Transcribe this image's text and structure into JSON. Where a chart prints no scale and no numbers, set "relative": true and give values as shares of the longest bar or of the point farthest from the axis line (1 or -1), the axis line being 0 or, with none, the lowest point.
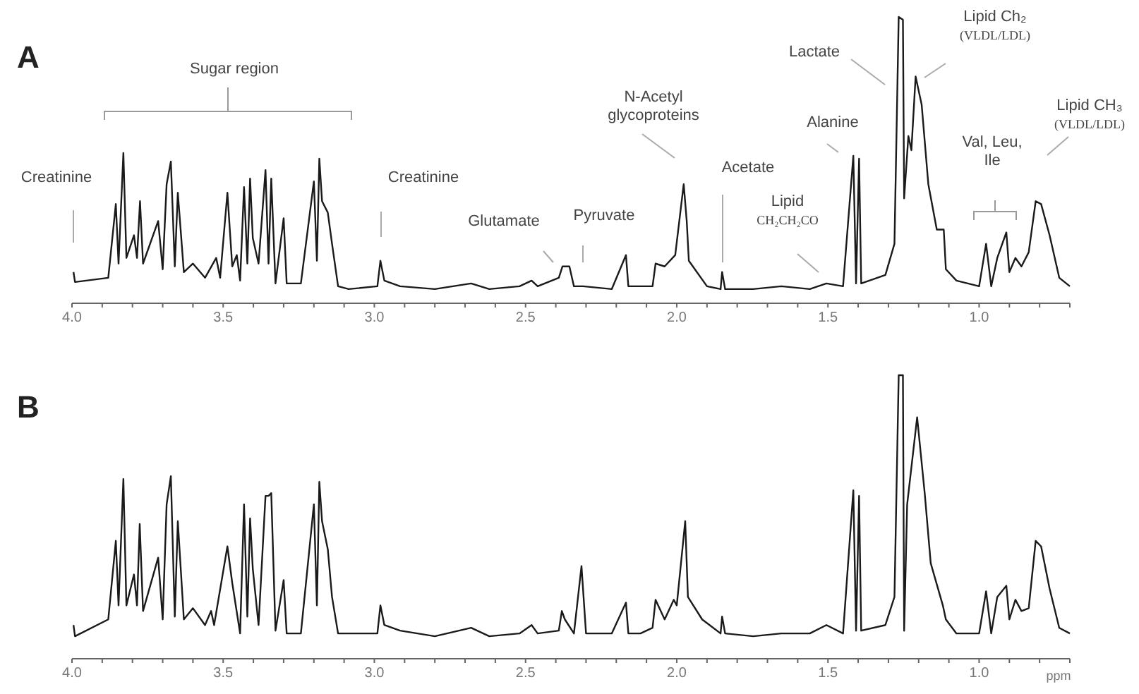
{
  "chart_data": [
    {
      "type": "line",
      "title": "A",
      "relative": true,
      "color": "#1a1a1a",
      "xlim": [
        4.0,
        0.7
      ],
      "xticks": [
        {
          "value": 4.0,
          "label": "4.0"
        },
        {
          "value": 3.9,
          "label": null
        },
        {
          "value": 3.8,
          "label": null
        },
        {
          "value": 3.7,
          "label": null
        },
        {
          "value": 3.6,
          "label": null
        },
        {
          "value": 3.5,
          "label": "3.5"
        },
        {
          "value": 3.4,
          "label": null
        },
        {
          "value": 3.3,
          "label": null
        },
        {
          "value": 3.2,
          "label": null
        },
        {
          "value": 3.1,
          "label": null
        },
        {
          "value": 3.0,
          "label": "3.0"
        },
        {
          "value": 2.9,
          "label": null
        },
        {
          "value": 2.8,
          "label": null
        },
        {
          "value": 2.7,
          "label": null
        },
        {
          "value": 2.6,
          "label": null
        },
        {
          "value": 2.5,
          "label": "2.5"
        },
        {
          "value": 2.4,
          "label": null
        },
        {
          "value": 2.3,
          "label": null
        },
        {
          "value": 2.2,
          "label": null
        },
        {
          "value": 2.1,
          "label": null
        },
        {
          "value": 2.0,
          "label": "2.0"
        },
        {
          "value": 1.9,
          "label": null
        },
        {
          "value": 1.8,
          "label": null
        },
        {
          "value": 1.7,
          "label": null
        },
        {
          "value": 1.6,
          "label": null
        },
        {
          "value": 1.5,
          "label": "1.5"
        },
        {
          "value": 1.4,
          "label": null
        },
        {
          "value": 1.3,
          "label": null
        },
        {
          "value": 1.2,
          "label": null
        },
        {
          "value": 1.1,
          "label": null
        },
        {
          "value": 1.0,
          "label": "1.0"
        },
        {
          "value": 0.9,
          "label": null
        },
        {
          "value": 0.8,
          "label": null
        },
        {
          "value": 0.7,
          "label": null
        }
      ],
      "x": [
        3.995,
        3.99,
        3.88,
        3.855,
        3.846,
        3.83,
        3.82,
        3.795,
        3.785,
        3.775,
        3.765,
        3.715,
        3.7,
        3.687,
        3.673,
        3.66,
        3.65,
        3.63,
        3.6,
        3.56,
        3.523,
        3.51,
        3.486,
        3.47,
        3.455,
        3.444,
        3.431,
        3.42,
        3.411,
        3.402,
        3.383,
        3.36,
        3.35,
        3.341,
        3.327,
        3.3,
        3.29,
        3.243,
        3.2,
        3.19,
        3.182,
        3.173,
        3.154,
        3.14,
        3.12,
        3.085,
        2.99,
        2.98,
        2.967,
        2.915,
        2.8,
        2.68,
        2.62,
        2.52,
        2.48,
        2.46,
        2.39,
        2.378,
        2.355,
        2.34,
        2.31,
        2.215,
        2.168,
        2.16,
        2.08,
        2.07,
        2.04,
        2.005,
        1.977,
        1.967,
        1.96,
        1.9,
        1.855,
        1.85,
        1.84,
        1.747,
        1.654,
        1.56,
        1.505,
        1.45,
        1.416,
        1.407,
        1.397,
        1.39,
        1.31,
        1.28,
        1.266,
        1.252,
        1.248,
        1.234,
        1.224,
        1.21,
        1.19,
        1.168,
        1.14,
        1.117,
        1.11,
        1.075,
        1.0,
        0.977,
        0.96,
        0.94,
        0.91,
        0.9,
        0.88,
        0.86,
        0.836,
        0.813,
        0.795,
        0.767,
        0.735,
        0.7
      ],
      "values": [
        0.1,
        0.065,
        0.08,
        0.34,
        0.13,
        0.52,
        0.15,
        0.23,
        0.15,
        0.35,
        0.13,
        0.28,
        0.11,
        0.41,
        0.49,
        0.12,
        0.38,
        0.1,
        0.13,
        0.08,
        0.15,
        0.08,
        0.38,
        0.12,
        0.16,
        0.07,
        0.4,
        0.13,
        0.43,
        0.22,
        0.13,
        0.46,
        0.13,
        0.43,
        0.06,
        0.29,
        0.06,
        0.06,
        0.42,
        0.14,
        0.5,
        0.35,
        0.31,
        0.2,
        0.05,
        0.04,
        0.05,
        0.14,
        0.07,
        0.05,
        0.04,
        0.06,
        0.04,
        0.05,
        0.07,
        0.05,
        0.08,
        0.12,
        0.12,
        0.05,
        0.05,
        0.04,
        0.16,
        0.05,
        0.05,
        0.13,
        0.12,
        0.16,
        0.41,
        0.28,
        0.14,
        0.05,
        0.04,
        0.1,
        0.04,
        0.04,
        0.05,
        0.04,
        0.06,
        0.05,
        0.51,
        0.06,
        0.5,
        0.06,
        0.09,
        0.2,
        1.0,
        0.99,
        0.36,
        0.58,
        0.53,
        0.79,
        0.69,
        0.41,
        0.25,
        0.25,
        0.11,
        0.07,
        0.05,
        0.2,
        0.05,
        0.15,
        0.24,
        0.1,
        0.15,
        0.12,
        0.17,
        0.35,
        0.34,
        0.23,
        0.08,
        0.05
      ],
      "annotations": [
        "Creatinine",
        "Sugar region",
        "Creatinine",
        "Glutamate",
        "Pyruvate",
        "N-Acetyl\nglycoproteins",
        "Acetate",
        "Lipid\nCH₂CH₂CO",
        "Alanine",
        "Lactate",
        "Lipid Ch₂\n(VLDL/LDL)",
        "Val, Leu,\nIle",
        "Lipid CH₃\n(VLDL/LDL)"
      ]
    },
    {
      "type": "line",
      "title": "B",
      "relative": true,
      "color": "#1a1a1a",
      "xlim": [
        4.0,
        0.7
      ],
      "xlabel": "ppm",
      "xticks": [
        {
          "value": 4.0,
          "label": "4.0"
        },
        {
          "value": 3.9,
          "label": null
        },
        {
          "value": 3.8,
          "label": null
        },
        {
          "value": 3.7,
          "label": null
        },
        {
          "value": 3.6,
          "label": null
        },
        {
          "value": 3.5,
          "label": "3.5"
        },
        {
          "value": 3.4,
          "label": null
        },
        {
          "value": 3.3,
          "label": null
        },
        {
          "value": 3.2,
          "label": null
        },
        {
          "value": 3.1,
          "label": null
        },
        {
          "value": 3.0,
          "label": "3.0"
        },
        {
          "value": 2.9,
          "label": null
        },
        {
          "value": 2.8,
          "label": null
        },
        {
          "value": 2.7,
          "label": null
        },
        {
          "value": 2.6,
          "label": null
        },
        {
          "value": 2.5,
          "label": "2.5"
        },
        {
          "value": 2.4,
          "label": null
        },
        {
          "value": 2.3,
          "label": null
        },
        {
          "value": 2.2,
          "label": null
        },
        {
          "value": 2.1,
          "label": null
        },
        {
          "value": 2.0,
          "label": "2.0"
        },
        {
          "value": 1.9,
          "label": null
        },
        {
          "value": 1.8,
          "label": null
        },
        {
          "value": 1.7,
          "label": null
        },
        {
          "value": 1.6,
          "label": null
        },
        {
          "value": 1.5,
          "label": "1.5"
        },
        {
          "value": 1.4,
          "label": null
        },
        {
          "value": 1.3,
          "label": null
        },
        {
          "value": 1.2,
          "label": null
        },
        {
          "value": 1.1,
          "label": null
        },
        {
          "value": 1.0,
          "label": "1.0"
        },
        {
          "value": 0.9,
          "label": null
        },
        {
          "value": 0.8,
          "label": null
        },
        {
          "value": 0.7,
          "label": null
        }
      ],
      "x": [
        3.995,
        3.99,
        3.88,
        3.855,
        3.846,
        3.83,
        3.82,
        3.795,
        3.785,
        3.776,
        3.765,
        3.715,
        3.7,
        3.687,
        3.673,
        3.66,
        3.65,
        3.63,
        3.6,
        3.56,
        3.54,
        3.53,
        3.486,
        3.47,
        3.444,
        3.431,
        3.42,
        3.411,
        3.402,
        3.383,
        3.36,
        3.35,
        3.341,
        3.327,
        3.3,
        3.29,
        3.243,
        3.2,
        3.19,
        3.182,
        3.173,
        3.154,
        3.14,
        3.12,
        3.085,
        2.99,
        2.98,
        2.967,
        2.915,
        2.8,
        2.68,
        2.62,
        2.52,
        2.48,
        2.46,
        2.39,
        2.38,
        2.37,
        2.34,
        2.315,
        2.3,
        2.215,
        2.168,
        2.16,
        2.12,
        2.08,
        2.07,
        2.04,
        2.01,
        2.0,
        1.972,
        1.963,
        1.916,
        1.855,
        1.85,
        1.84,
        1.747,
        1.654,
        1.56,
        1.505,
        1.45,
        1.416,
        1.407,
        1.397,
        1.39,
        1.31,
        1.28,
        1.266,
        1.252,
        1.248,
        1.238,
        1.205,
        1.18,
        1.16,
        1.12,
        1.11,
        1.075,
        1.0,
        0.977,
        0.96,
        0.94,
        0.91,
        0.9,
        0.88,
        0.86,
        0.836,
        0.813,
        0.795,
        0.767,
        0.735,
        0.7
      ],
      "values": [
        0.11,
        0.07,
        0.13,
        0.41,
        0.18,
        0.63,
        0.18,
        0.29,
        0.18,
        0.47,
        0.16,
        0.35,
        0.13,
        0.54,
        0.64,
        0.14,
        0.48,
        0.13,
        0.17,
        0.11,
        0.16,
        0.11,
        0.39,
        0.26,
        0.08,
        0.54,
        0.14,
        0.49,
        0.31,
        0.11,
        0.57,
        0.57,
        0.58,
        0.09,
        0.27,
        0.08,
        0.08,
        0.54,
        0.18,
        0.62,
        0.48,
        0.38,
        0.21,
        0.08,
        0.08,
        0.08,
        0.18,
        0.11,
        0.09,
        0.07,
        0.1,
        0.07,
        0.08,
        0.11,
        0.08,
        0.09,
        0.16,
        0.13,
        0.08,
        0.32,
        0.08,
        0.08,
        0.19,
        0.08,
        0.08,
        0.1,
        0.2,
        0.13,
        0.2,
        0.18,
        0.48,
        0.21,
        0.13,
        0.08,
        0.14,
        0.08,
        0.07,
        0.08,
        0.08,
        0.11,
        0.08,
        0.59,
        0.09,
        0.57,
        0.09,
        0.11,
        0.21,
        1.0,
        1.0,
        0.09,
        0.54,
        0.85,
        0.58,
        0.33,
        0.18,
        0.13,
        0.08,
        0.08,
        0.23,
        0.08,
        0.21,
        0.25,
        0.13,
        0.2,
        0.16,
        0.17,
        0.41,
        0.39,
        0.24,
        0.1,
        0.08
      ]
    }
  ]
}
